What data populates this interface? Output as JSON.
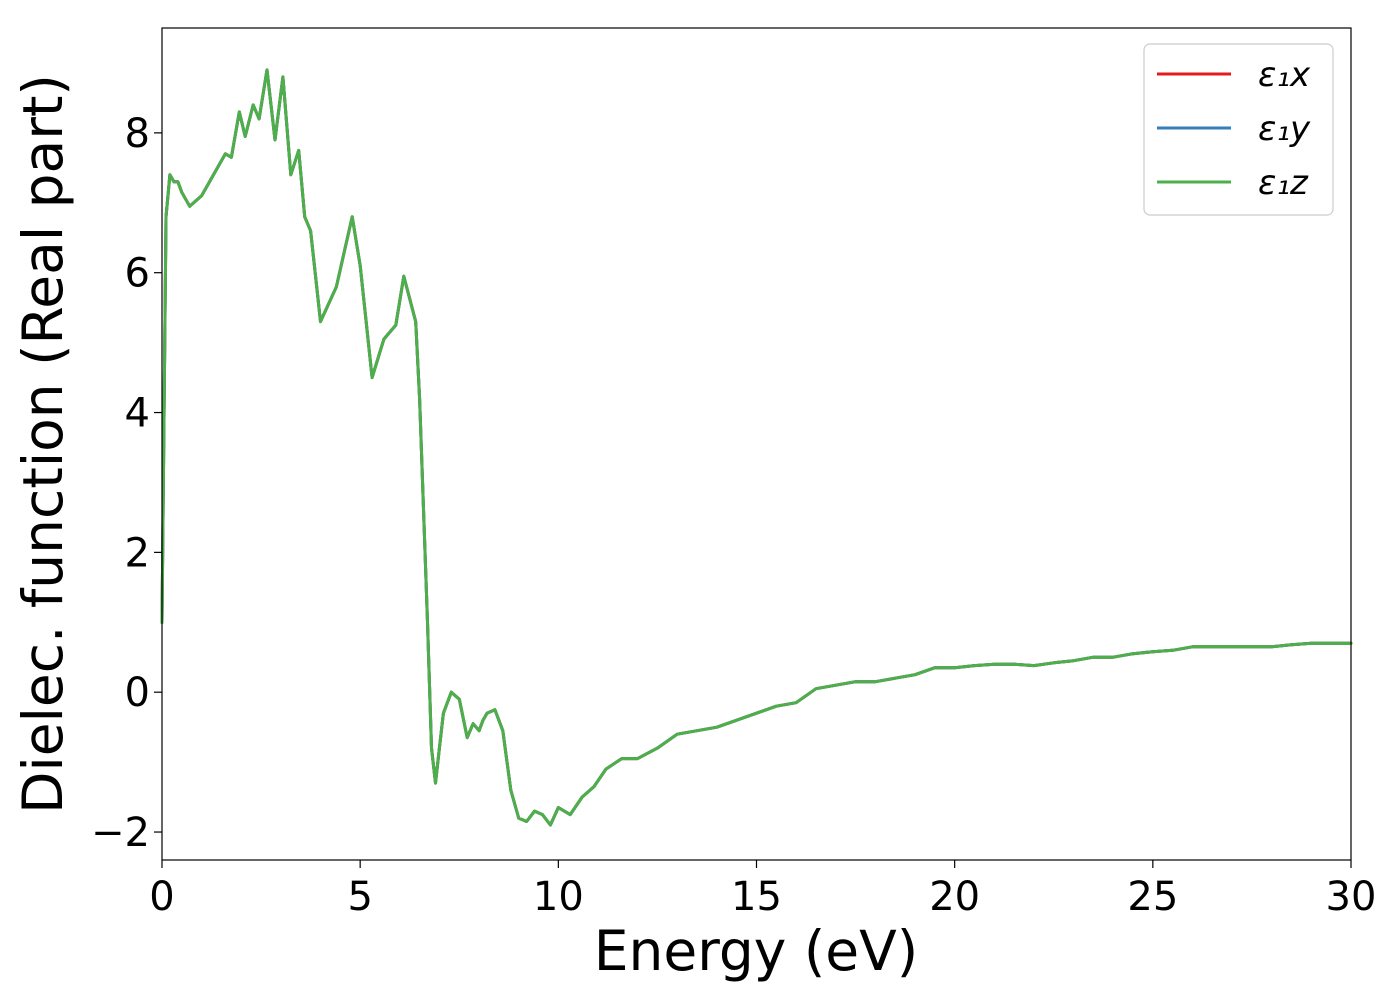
{
  "chart_data": {
    "type": "line",
    "title": "",
    "xlabel": "Energy (eV)",
    "ylabel": "Dielec. function (Real part)",
    "xlim": [
      0,
      30
    ],
    "ylim": [
      -2.4,
      9.5
    ],
    "xticks": [
      0,
      5,
      10,
      15,
      20,
      25,
      30
    ],
    "xtick_labels": [
      "0",
      "5",
      "10",
      "15",
      "20",
      "25",
      "30"
    ],
    "yticks": [
      -2,
      0,
      2,
      4,
      6,
      8
    ],
    "ytick_labels": [
      "−2",
      "0",
      "2",
      "4",
      "6",
      "8"
    ],
    "grid": false,
    "legend_position": "top-right",
    "x": [
      0.0,
      0.1,
      0.2,
      0.3,
      0.4,
      0.5,
      0.7,
      1.0,
      1.3,
      1.6,
      1.75,
      1.95,
      2.1,
      2.3,
      2.45,
      2.65,
      2.85,
      3.05,
      3.25,
      3.45,
      3.6,
      3.75,
      4.0,
      4.4,
      4.6,
      4.8,
      5.0,
      5.3,
      5.6,
      5.9,
      6.1,
      6.4,
      6.5,
      6.7,
      6.8,
      6.9,
      7.0,
      7.1,
      7.3,
      7.5,
      7.7,
      7.85,
      8.0,
      8.1,
      8.2,
      8.4,
      8.6,
      8.8,
      9.0,
      9.2,
      9.4,
      9.6,
      9.8,
      10.0,
      10.3,
      10.6,
      10.9,
      11.2,
      11.6,
      12.0,
      12.5,
      13.0,
      13.5,
      14.0,
      14.5,
      15.0,
      15.5,
      16.0,
      16.5,
      17.0,
      17.5,
      18.0,
      18.5,
      19.0,
      19.5,
      20.0,
      20.5,
      21.0,
      21.5,
      22.0,
      22.5,
      23.0,
      23.5,
      24.0,
      24.5,
      25.0,
      25.5,
      26.0,
      26.5,
      27.0,
      27.5,
      28.0,
      28.5,
      29.0,
      29.5,
      30.0
    ],
    "series": [
      {
        "name": "ε₁x",
        "color": "#e41a1c",
        "values": [
          1.0,
          6.8,
          7.4,
          7.3,
          7.3,
          7.15,
          6.95,
          7.1,
          7.4,
          7.7,
          7.65,
          8.3,
          7.95,
          8.4,
          8.2,
          8.9,
          7.9,
          8.8,
          7.4,
          7.75,
          6.8,
          6.6,
          5.3,
          5.8,
          6.3,
          6.8,
          6.1,
          4.5,
          5.05,
          5.25,
          5.95,
          5.3,
          4.2,
          1.0,
          -0.8,
          -1.3,
          -0.8,
          -0.3,
          0.0,
          -0.1,
          -0.65,
          -0.45,
          -0.55,
          -0.4,
          -0.3,
          -0.25,
          -0.55,
          -1.4,
          -1.8,
          -1.85,
          -1.7,
          -1.75,
          -1.9,
          -1.65,
          -1.75,
          -1.5,
          -1.35,
          -1.1,
          -0.95,
          -0.95,
          -0.8,
          -0.6,
          -0.55,
          -0.5,
          -0.4,
          -0.3,
          -0.2,
          -0.15,
          0.05,
          0.1,
          0.15,
          0.15,
          0.2,
          0.25,
          0.35,
          0.35,
          0.38,
          0.4,
          0.4,
          0.38,
          0.42,
          0.45,
          0.5,
          0.5,
          0.55,
          0.58,
          0.6,
          0.65,
          0.65,
          0.65,
          0.65,
          0.65,
          0.68,
          0.7,
          0.7,
          0.7
        ]
      },
      {
        "name": "ε₁y",
        "color": "#377eb8",
        "values": [
          1.0,
          6.8,
          7.4,
          7.3,
          7.3,
          7.15,
          6.95,
          7.1,
          7.4,
          7.7,
          7.65,
          8.3,
          7.95,
          8.4,
          8.2,
          8.9,
          7.9,
          8.8,
          7.4,
          7.75,
          6.8,
          6.6,
          5.3,
          5.8,
          6.3,
          6.8,
          6.1,
          4.5,
          5.05,
          5.25,
          5.95,
          5.3,
          4.2,
          1.0,
          -0.8,
          -1.3,
          -0.8,
          -0.3,
          0.0,
          -0.1,
          -0.65,
          -0.45,
          -0.55,
          -0.4,
          -0.3,
          -0.25,
          -0.55,
          -1.4,
          -1.8,
          -1.85,
          -1.7,
          -1.75,
          -1.9,
          -1.65,
          -1.75,
          -1.5,
          -1.35,
          -1.1,
          -0.95,
          -0.95,
          -0.8,
          -0.6,
          -0.55,
          -0.5,
          -0.4,
          -0.3,
          -0.2,
          -0.15,
          0.05,
          0.1,
          0.15,
          0.15,
          0.2,
          0.25,
          0.35,
          0.35,
          0.38,
          0.4,
          0.4,
          0.38,
          0.42,
          0.45,
          0.5,
          0.5,
          0.55,
          0.58,
          0.6,
          0.65,
          0.65,
          0.65,
          0.65,
          0.65,
          0.68,
          0.7,
          0.7,
          0.7
        ]
      },
      {
        "name": "ε₁z",
        "color": "#4daf4a",
        "values": [
          1.0,
          6.8,
          7.4,
          7.3,
          7.3,
          7.15,
          6.95,
          7.1,
          7.4,
          7.7,
          7.65,
          8.3,
          7.95,
          8.4,
          8.2,
          8.9,
          7.9,
          8.8,
          7.4,
          7.75,
          6.8,
          6.6,
          5.3,
          5.8,
          6.3,
          6.8,
          6.1,
          4.5,
          5.05,
          5.25,
          5.95,
          5.3,
          4.2,
          1.0,
          -0.8,
          -1.3,
          -0.8,
          -0.3,
          0.0,
          -0.1,
          -0.65,
          -0.45,
          -0.55,
          -0.4,
          -0.3,
          -0.25,
          -0.55,
          -1.4,
          -1.8,
          -1.85,
          -1.7,
          -1.75,
          -1.9,
          -1.65,
          -1.75,
          -1.5,
          -1.35,
          -1.1,
          -0.95,
          -0.95,
          -0.8,
          -0.6,
          -0.55,
          -0.5,
          -0.4,
          -0.3,
          -0.2,
          -0.15,
          0.05,
          0.1,
          0.15,
          0.15,
          0.2,
          0.25,
          0.35,
          0.35,
          0.38,
          0.4,
          0.4,
          0.38,
          0.42,
          0.45,
          0.5,
          0.5,
          0.55,
          0.58,
          0.6,
          0.65,
          0.65,
          0.65,
          0.65,
          0.65,
          0.68,
          0.7,
          0.7,
          0.7
        ]
      }
    ]
  }
}
